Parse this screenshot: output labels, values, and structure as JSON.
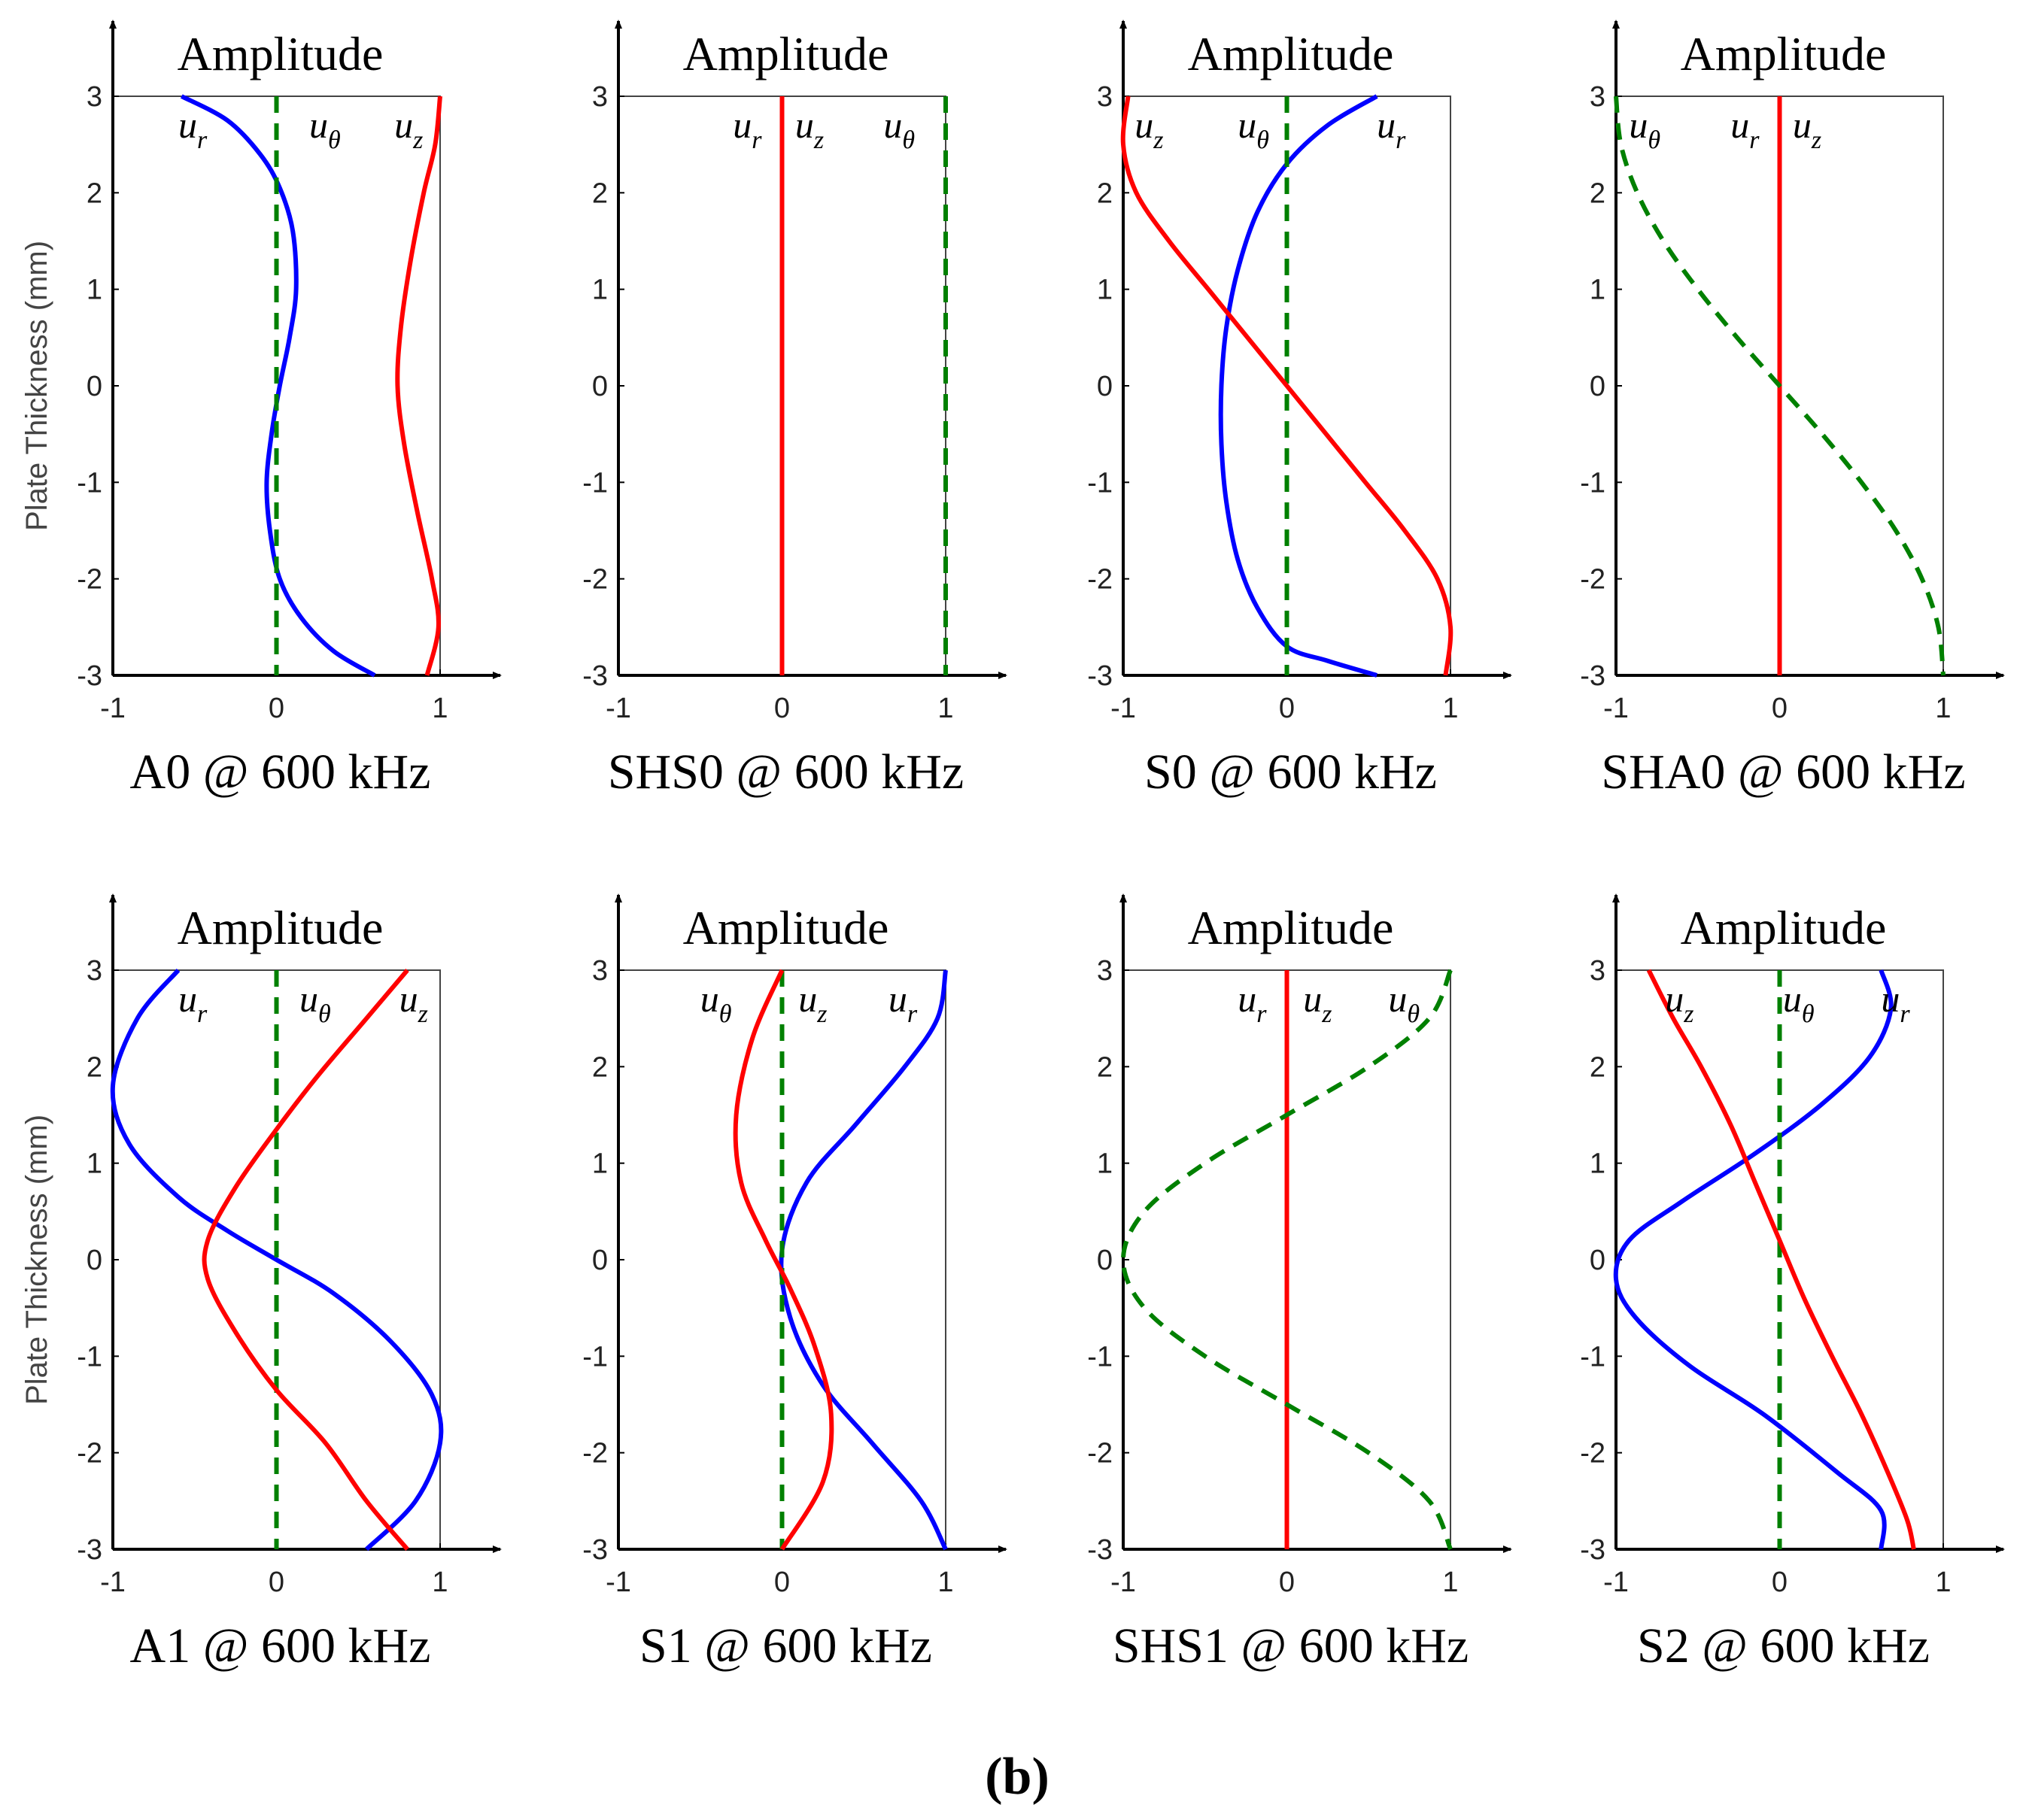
{
  "figure_label": "(b)",
  "chart_data": [
    {
      "type": "line",
      "title": "Amplitude",
      "caption": "A0 @ 600 kHz",
      "ylabel": "Plate Thickness (mm)",
      "xlim": [
        -1,
        1
      ],
      "ylim": [
        -3,
        3
      ],
      "xticks": [
        "-1",
        "0",
        "1"
      ],
      "yticks": [
        "3",
        "2",
        "1",
        "0",
        "-1",
        "-2",
        "-3"
      ],
      "labels": [
        {
          "base": "u",
          "sub": "r",
          "x": -0.6
        },
        {
          "base": "u",
          "sub": "θ",
          "x": 0.2
        },
        {
          "base": "u",
          "sub": "z",
          "x": 0.72
        }
      ],
      "series": [
        {
          "name": "u_r",
          "color": "#0000ff",
          "dashed": false,
          "x": [
            -0.58,
            -0.3,
            -0.1,
            0.02,
            0.1,
            0.12,
            0.08,
            0.02,
            -0.03,
            -0.06,
            -0.04,
            0.02,
            0.15,
            0.35,
            0.6
          ],
          "y": [
            3,
            2.75,
            2.4,
            2.05,
            1.6,
            1.0,
            0.5,
            0.0,
            -0.5,
            -1.0,
            -1.5,
            -2.0,
            -2.4,
            -2.75,
            -3
          ]
        },
        {
          "name": "u_theta",
          "color": "#008000",
          "dashed": true,
          "x": [
            0,
            0
          ],
          "y": [
            3,
            -3
          ]
        },
        {
          "name": "u_z",
          "color": "#ff0000",
          "dashed": false,
          "x": [
            1.0,
            0.97,
            0.9,
            0.82,
            0.76,
            0.74,
            0.78,
            0.86,
            0.95,
            0.99,
            0.92
          ],
          "y": [
            3,
            2.5,
            2.0,
            1.3,
            0.6,
            0.0,
            -0.6,
            -1.3,
            -2.0,
            -2.5,
            -3
          ]
        }
      ]
    },
    {
      "type": "line",
      "title": "Amplitude",
      "caption": "SHS0 @ 600 kHz",
      "xlim": [
        -1,
        1
      ],
      "ylim": [
        -3,
        3
      ],
      "xticks": [
        "-1",
        "0",
        "1"
      ],
      "yticks": [
        "3",
        "2",
        "1",
        "0",
        "-1",
        "-2",
        "-3"
      ],
      "labels": [
        {
          "base": "u",
          "sub": "r",
          "x": -0.3
        },
        {
          "base": "u",
          "sub": "z",
          "x": 0.08
        },
        {
          "base": "u",
          "sub": "θ",
          "x": 0.62
        }
      ],
      "series": [
        {
          "name": "u_r / u_z",
          "color": "#ff0000",
          "dashed": false,
          "x": [
            0,
            0
          ],
          "y": [
            3,
            -3
          ]
        },
        {
          "name": "u_theta",
          "color": "#008000",
          "dashed": true,
          "x": [
            1,
            1
          ],
          "y": [
            3,
            -3
          ]
        }
      ]
    },
    {
      "type": "line",
      "title": "Amplitude",
      "caption": "S0 @ 600 kHz",
      "xlim": [
        -1,
        1
      ],
      "ylim": [
        -3,
        3
      ],
      "xticks": [
        "-1",
        "0",
        "1"
      ],
      "yticks": [
        "3",
        "2",
        "1",
        "0",
        "-1",
        "-2",
        "-3"
      ],
      "labels": [
        {
          "base": "u",
          "sub": "z",
          "x": -0.93
        },
        {
          "base": "u",
          "sub": "θ",
          "x": -0.3
        },
        {
          "base": "u",
          "sub": "r",
          "x": 0.55
        }
      ],
      "series": [
        {
          "name": "u_r",
          "color": "#0000ff",
          "dashed": false,
          "x": [
            0.55,
            0.25,
            0.0,
            -0.18,
            -0.3,
            -0.37,
            -0.4,
            -0.4,
            -0.37,
            -0.3,
            -0.18,
            0.0,
            0.25,
            0.55
          ],
          "y": [
            3,
            2.7,
            2.3,
            1.8,
            1.2,
            0.6,
            0.0,
            -0.6,
            -1.2,
            -1.8,
            -2.3,
            -2.7,
            -2.85,
            -3
          ]
        },
        {
          "name": "u_theta",
          "color": "#008000",
          "dashed": true,
          "x": [
            0,
            0
          ],
          "y": [
            3,
            -3
          ]
        },
        {
          "name": "u_z",
          "color": "#ff0000",
          "dashed": false,
          "x": [
            -0.97,
            -1.0,
            -0.92,
            -0.72,
            -0.48,
            -0.24,
            0.0,
            0.24,
            0.48,
            0.72,
            0.92,
            1.0,
            0.97
          ],
          "y": [
            3,
            2.5,
            2.0,
            1.5,
            1.0,
            0.5,
            0.0,
            -0.5,
            -1.0,
            -1.5,
            -2.0,
            -2.5,
            -3
          ]
        }
      ]
    },
    {
      "type": "line",
      "title": "Amplitude",
      "caption": "SHA0 @ 600 kHz",
      "xlim": [
        -1,
        1
      ],
      "ylim": [
        -3,
        3
      ],
      "xticks": [
        "-1",
        "0",
        "1"
      ],
      "yticks": [
        "3",
        "2",
        "1",
        "0",
        "-1",
        "-2",
        "-3"
      ],
      "labels": [
        {
          "base": "u",
          "sub": "θ",
          "x": -0.92
        },
        {
          "base": "u",
          "sub": "r",
          "x": -0.3
        },
        {
          "base": "u",
          "sub": "z",
          "x": 0.08
        }
      ],
      "series": [
        {
          "name": "u_r / u_z",
          "color": "#ff0000",
          "dashed": false,
          "x": [
            0,
            0
          ],
          "y": [
            3,
            -3
          ]
        },
        {
          "name": "u_theta",
          "color": "#008000",
          "dashed": true,
          "x": [
            -1.0,
            -0.97,
            -0.87,
            -0.71,
            -0.5,
            -0.26,
            0.0,
            0.26,
            0.5,
            0.71,
            0.87,
            0.97,
            1.0
          ],
          "y": [
            3,
            2.5,
            2.0,
            1.5,
            1.0,
            0.5,
            0.0,
            -0.5,
            -1.0,
            -1.5,
            -2.0,
            -2.5,
            -3
          ]
        }
      ]
    },
    {
      "type": "line",
      "title": "Amplitude",
      "caption": "A1 @ 600 kHz",
      "ylabel": "Plate Thickness (mm)",
      "xlim": [
        -1,
        1
      ],
      "ylim": [
        -3,
        3
      ],
      "xticks": [
        "-1",
        "0",
        "1"
      ],
      "yticks": [
        "3",
        "2",
        "1",
        "0",
        "-1",
        "-2",
        "-3"
      ],
      "labels": [
        {
          "base": "u",
          "sub": "r",
          "x": -0.6
        },
        {
          "base": "u",
          "sub": "θ",
          "x": 0.14
        },
        {
          "base": "u",
          "sub": "z",
          "x": 0.75
        }
      ],
      "series": [
        {
          "name": "u_r",
          "color": "#0000ff",
          "dashed": false,
          "x": [
            -0.6,
            -0.85,
            -1.0,
            -0.9,
            -0.6,
            -0.3,
            0.0,
            0.35,
            0.7,
            0.95,
            1.0,
            0.85,
            0.55
          ],
          "y": [
            3,
            2.5,
            1.8,
            1.2,
            0.65,
            0.3,
            0.0,
            -0.35,
            -0.85,
            -1.4,
            -1.9,
            -2.5,
            -3
          ]
        },
        {
          "name": "u_theta",
          "color": "#008000",
          "dashed": true,
          "x": [
            0,
            0
          ],
          "y": [
            3,
            -3
          ]
        },
        {
          "name": "u_z",
          "color": "#ff0000",
          "dashed": false,
          "x": [
            0.8,
            0.55,
            0.25,
            0.0,
            -0.25,
            -0.42,
            -0.42,
            -0.25,
            0.0,
            0.3,
            0.55,
            0.8
          ],
          "y": [
            3,
            2.5,
            1.9,
            1.35,
            0.75,
            0.2,
            -0.2,
            -0.75,
            -1.35,
            -1.9,
            -2.5,
            -3
          ]
        }
      ]
    },
    {
      "type": "line",
      "title": "Amplitude",
      "caption": "S1 @ 600 kHz",
      "xlim": [
        -1,
        1
      ],
      "ylim": [
        -3,
        3
      ],
      "xticks": [
        "-1",
        "0",
        "1"
      ],
      "yticks": [
        "3",
        "2",
        "1",
        "0",
        "-1",
        "-2",
        "-3"
      ],
      "labels": [
        {
          "base": "u",
          "sub": "θ",
          "x": -0.5
        },
        {
          "base": "u",
          "sub": "z",
          "x": 0.1
        },
        {
          "base": "u",
          "sub": "r",
          "x": 0.65
        }
      ],
      "series": [
        {
          "name": "u_r",
          "color": "#0000ff",
          "dashed": false,
          "x": [
            1.0,
            0.95,
            0.75,
            0.45,
            0.15,
            0.0,
            0.05,
            0.25,
            0.55,
            0.85,
            1.0
          ],
          "y": [
            3,
            2.5,
            2.0,
            1.4,
            0.8,
            0.1,
            -0.6,
            -1.3,
            -1.9,
            -2.5,
            -3
          ]
        },
        {
          "name": "u_theta",
          "color": "#008000",
          "dashed": true,
          "x": [
            0,
            0
          ],
          "y": [
            3,
            -3
          ]
        },
        {
          "name": "u_z",
          "color": "#ff0000",
          "dashed": false,
          "x": [
            0.0,
            -0.18,
            -0.28,
            -0.25,
            -0.1,
            0.05,
            0.2,
            0.3,
            0.25,
            0.0
          ],
          "y": [
            3,
            2.3,
            1.5,
            0.8,
            0.2,
            -0.3,
            -0.9,
            -1.6,
            -2.3,
            -3
          ]
        }
      ]
    },
    {
      "type": "line",
      "title": "Amplitude",
      "caption": "SHS1 @ 600 kHz",
      "xlim": [
        -1,
        1
      ],
      "ylim": [
        -3,
        3
      ],
      "xticks": [
        "-1",
        "0",
        "1"
      ],
      "yticks": [
        "3",
        "2",
        "1",
        "0",
        "-1",
        "-2",
        "-3"
      ],
      "labels": [
        {
          "base": "u",
          "sub": "r",
          "x": -0.3
        },
        {
          "base": "u",
          "sub": "z",
          "x": 0.1
        },
        {
          "base": "u",
          "sub": "θ",
          "x": 0.62
        }
      ],
      "series": [
        {
          "name": "u_r / u_z",
          "color": "#ff0000",
          "dashed": false,
          "x": [
            0,
            0
          ],
          "y": [
            3,
            -3
          ]
        },
        {
          "name": "u_theta",
          "color": "#008000",
          "dashed": true,
          "x": [
            1.0,
            0.87,
            0.5,
            0.0,
            -0.5,
            -0.87,
            -1.0,
            -0.87,
            -0.5,
            0.0,
            0.5,
            0.87,
            1.0
          ],
          "y": [
            3,
            2.5,
            2.0,
            1.5,
            1.0,
            0.5,
            0.0,
            -0.5,
            -1.0,
            -1.5,
            -2.0,
            -2.5,
            -3
          ]
        }
      ]
    },
    {
      "type": "line",
      "title": "Amplitude",
      "caption": "S2 @ 600 kHz",
      "xlim": [
        -1,
        1
      ],
      "ylim": [
        -3,
        3
      ],
      "xticks": [
        "-1",
        "0",
        "1"
      ],
      "yticks": [
        "3",
        "2",
        "1",
        "0",
        "-1",
        "-2",
        "-3"
      ],
      "labels": [
        {
          "base": "u",
          "sub": "z",
          "x": -0.7
        },
        {
          "base": "u",
          "sub": "θ",
          "x": 0.02
        },
        {
          "base": "u",
          "sub": "r",
          "x": 0.62
        }
      ],
      "series": [
        {
          "name": "u_r",
          "color": "#0000ff",
          "dashed": false,
          "x": [
            0.62,
            0.68,
            0.55,
            0.25,
            -0.15,
            -0.6,
            -0.92,
            -1.0,
            -0.88,
            -0.55,
            -0.1,
            0.35,
            0.62,
            0.62
          ],
          "y": [
            3,
            2.6,
            2.1,
            1.6,
            1.1,
            0.6,
            0.2,
            -0.2,
            -0.6,
            -1.1,
            -1.6,
            -2.2,
            -2.6,
            -3
          ]
        },
        {
          "name": "u_theta",
          "color": "#008000",
          "dashed": true,
          "x": [
            0,
            0
          ],
          "y": [
            3,
            -3
          ]
        },
        {
          "name": "u_z",
          "color": "#ff0000",
          "dashed": false,
          "x": [
            -0.8,
            -0.65,
            -0.48,
            -0.3,
            -0.15,
            0.0,
            0.15,
            0.32,
            0.5,
            0.66,
            0.78,
            0.82
          ],
          "y": [
            3,
            2.5,
            2.0,
            1.4,
            0.8,
            0.2,
            -0.4,
            -1.0,
            -1.6,
            -2.2,
            -2.7,
            -3
          ]
        }
      ]
    }
  ]
}
